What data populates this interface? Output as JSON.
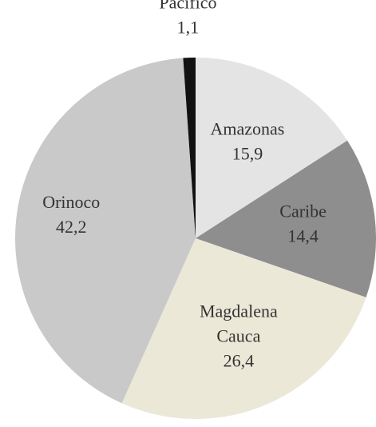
{
  "chart_data": {
    "type": "pie",
    "categories": [
      "Amazonas",
      "Caribe",
      "Magdalena Cauca",
      "Orinoco",
      "Pacífico"
    ],
    "values": [
      15.9,
      14.4,
      26.4,
      42.2,
      1.1
    ],
    "value_labels": [
      "15,9",
      "14,4",
      "26,4",
      "42,2",
      "1,1"
    ],
    "colors": [
      "#e4e4e4",
      "#8e8e8e",
      "#ebe8d8",
      "#c9c9c9",
      "#111111"
    ]
  }
}
